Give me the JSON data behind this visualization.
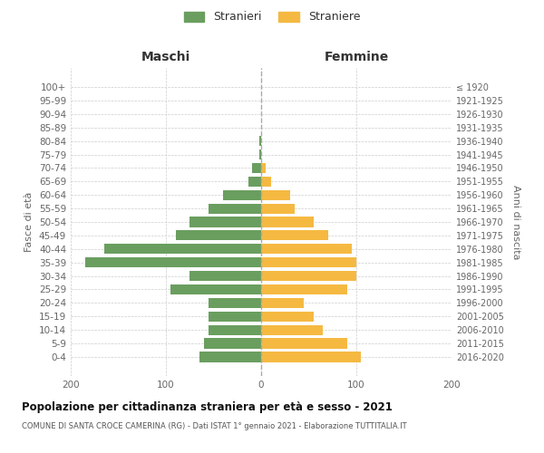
{
  "age_groups": [
    "100+",
    "95-99",
    "90-94",
    "85-89",
    "80-84",
    "75-79",
    "70-74",
    "65-69",
    "60-64",
    "55-59",
    "50-54",
    "45-49",
    "40-44",
    "35-39",
    "30-34",
    "25-29",
    "20-24",
    "15-19",
    "10-14",
    "5-9",
    "0-4"
  ],
  "birth_years": [
    "≤ 1920",
    "1921-1925",
    "1926-1930",
    "1931-1935",
    "1936-1940",
    "1941-1945",
    "1946-1950",
    "1951-1955",
    "1956-1960",
    "1961-1965",
    "1966-1970",
    "1971-1975",
    "1976-1980",
    "1981-1985",
    "1986-1990",
    "1991-1995",
    "1996-2000",
    "2001-2005",
    "2006-2010",
    "2011-2015",
    "2016-2020"
  ],
  "maschi": [
    0,
    0,
    0,
    0,
    2,
    2,
    10,
    13,
    40,
    55,
    75,
    90,
    165,
    185,
    75,
    95,
    55,
    55,
    55,
    60,
    65
  ],
  "femmine": [
    0,
    0,
    0,
    0,
    0,
    0,
    5,
    10,
    30,
    35,
    55,
    70,
    95,
    100,
    100,
    90,
    45,
    55,
    65,
    90,
    105
  ],
  "color_maschi": "#6a9e5f",
  "color_femmine": "#f5b942",
  "title": "Popolazione per cittadinanza straniera per età e sesso - 2021",
  "subtitle": "COMUNE DI SANTA CROCE CAMERINA (RG) - Dati ISTAT 1° gennaio 2021 - Elaborazione TUTTITALIA.IT",
  "ylabel_left": "Fasce di età",
  "ylabel_right": "Anni di nascita",
  "xlabel_left": "Maschi",
  "xlabel_right": "Femmine",
  "legend_maschi": "Stranieri",
  "legend_femmine": "Straniere",
  "xlim": 200,
  "background_color": "#ffffff",
  "grid_color": "#cccccc"
}
